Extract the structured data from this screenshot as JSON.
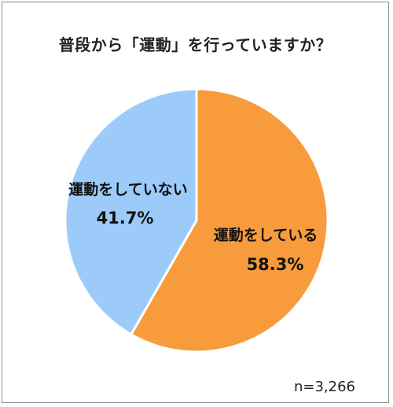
{
  "chart_data": {
    "type": "pie",
    "title": "普段から「運動」を行っていますか？",
    "slices": [
      {
        "label": "運動をしている",
        "value": 58.3,
        "value_label": "58.3%",
        "color": "#f79b3c"
      },
      {
        "label": "運動をしていない",
        "value": 41.7,
        "value_label": "41.7%",
        "color": "#9ccbf9"
      }
    ],
    "start_angle": "12 o'clock",
    "direction": "clockwise",
    "legend": "none",
    "annotation": "n=3,266"
  },
  "colors": {
    "edge": "#ffffff",
    "frame": "#8c8c8c"
  }
}
